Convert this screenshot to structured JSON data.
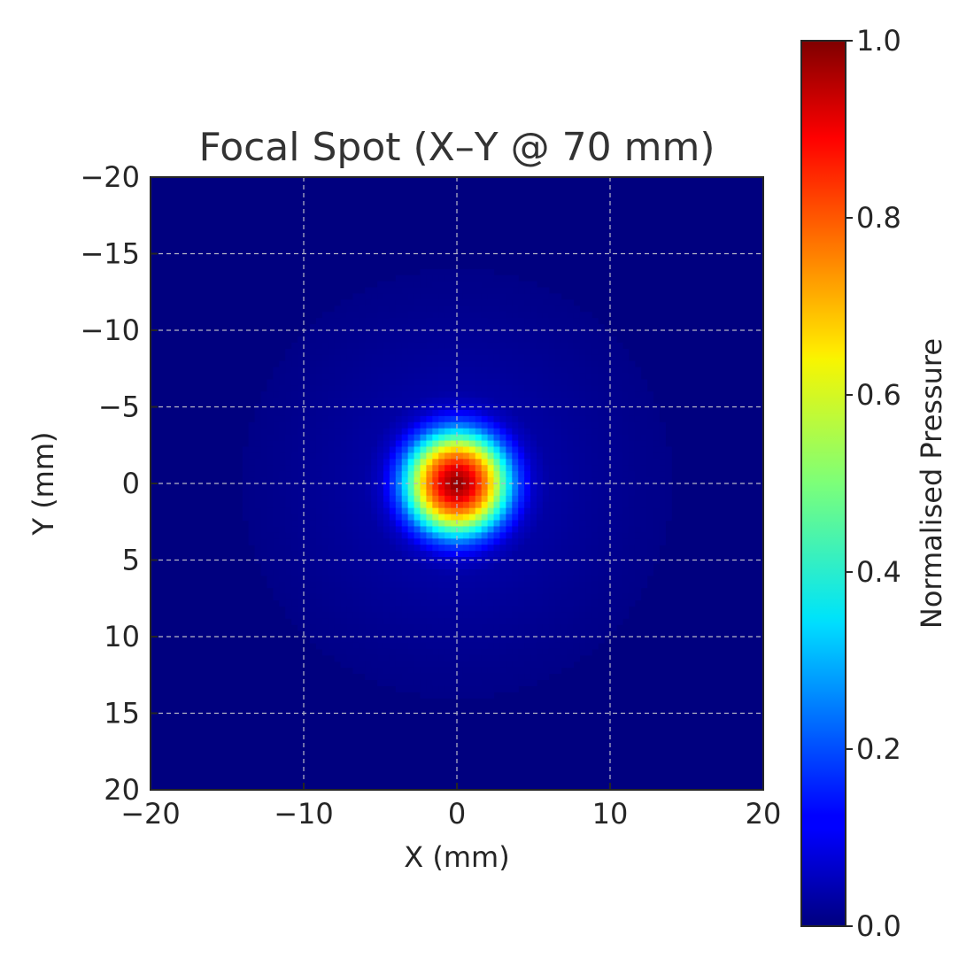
{
  "chart_data": {
    "type": "heatmap",
    "title": "Focal Spot (X–Y @ 70 mm)",
    "xlabel": "X (mm)",
    "ylabel": "Y (mm)",
    "xlim": [
      -20,
      20
    ],
    "ylim": [
      20,
      -20
    ],
    "y_inverted": true,
    "x_ticks": [
      -20,
      -10,
      0,
      10,
      20
    ],
    "x_tick_labels": [
      "−20",
      "−10",
      "0",
      "10",
      "20"
    ],
    "y_ticks": [
      -20,
      -15,
      -10,
      -5,
      0,
      5,
      10,
      15,
      20
    ],
    "y_tick_labels": [
      "−20",
      "−15",
      "−10",
      "−5",
      "0",
      "5",
      "10",
      "15",
      "20"
    ],
    "grid": true,
    "colormap": "jet",
    "colorbar": {
      "label": "Normalised Pressure",
      "range": [
        0.0,
        1.0
      ],
      "ticks": [
        0.0,
        0.2,
        0.4,
        0.6,
        0.8,
        1.0
      ],
      "tick_labels": [
        "0.0",
        "0.2",
        "0.4",
        "0.6",
        "0.8",
        "1.0"
      ]
    },
    "field": {
      "shape": "circular focal spot",
      "peak": 1.0,
      "peak_location_mm": [
        0,
        0
      ],
      "radial_profile": {
        "r_mm": [
          0,
          1,
          2,
          3,
          3.5,
          4,
          5,
          6,
          8,
          10,
          12,
          14,
          20
        ],
        "value": [
          1.0,
          0.9,
          0.72,
          0.45,
          0.32,
          0.2,
          0.07,
          0.035,
          0.025,
          0.018,
          0.012,
          0.008,
          0.005
        ]
      }
    }
  }
}
